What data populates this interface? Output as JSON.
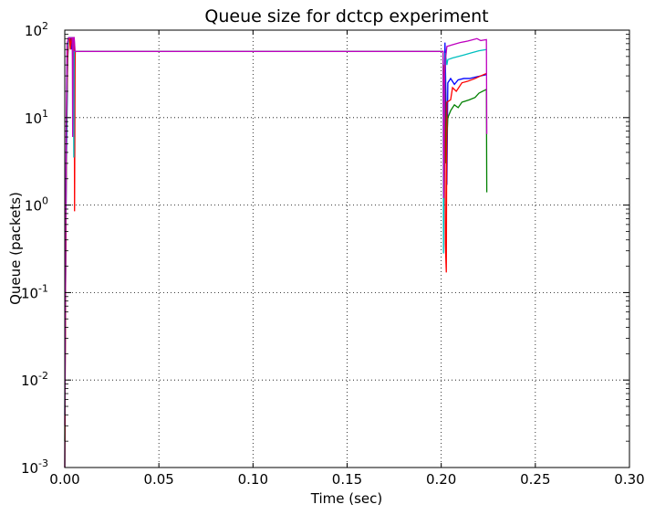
{
  "chart_data": {
    "type": "line",
    "title": "Queue size for dctcp experiment",
    "xlabel": "Time (sec)",
    "ylabel": "Queue (packets)",
    "xlim": [
      0.0,
      0.3
    ],
    "ylim": [
      0.001,
      100
    ],
    "yscale": "log",
    "grid": true,
    "x_ticks": [
      "0.00",
      "0.05",
      "0.10",
      "0.15",
      "0.20",
      "0.25",
      "0.30"
    ],
    "x_tick_values": [
      0.0,
      0.05,
      0.1,
      0.15,
      0.2,
      0.25,
      0.3
    ],
    "y_ticks": [
      {
        "value": 0.001,
        "base": "10",
        "exp": "-3"
      },
      {
        "value": 0.01,
        "base": "10",
        "exp": "-2"
      },
      {
        "value": 0.1,
        "base": "10",
        "exp": "-1"
      },
      {
        "value": 1,
        "base": "10",
        "exp": "0"
      },
      {
        "value": 10,
        "base": "10",
        "exp": "1"
      },
      {
        "value": 100,
        "base": "10",
        "exp": "2"
      }
    ],
    "series": [
      {
        "color": "#0000ff",
        "points": [
          [
            0.0,
            0.001
          ],
          [
            0.0003,
            0.05
          ],
          [
            0.0008,
            2
          ],
          [
            0.0015,
            40
          ],
          [
            0.002,
            82
          ],
          [
            0.003,
            82
          ],
          [
            0.0035,
            60
          ],
          [
            0.004,
            82
          ],
          [
            0.0045,
            82
          ],
          [
            0.005,
            82
          ],
          [
            0.0052,
            30
          ],
          [
            0.0055,
            57
          ],
          [
            0.201,
            57
          ],
          [
            0.2015,
            8
          ],
          [
            0.202,
            72
          ],
          [
            0.2025,
            18
          ],
          [
            0.203,
            1.7
          ],
          [
            0.2035,
            25
          ],
          [
            0.205,
            28
          ],
          [
            0.207,
            24
          ],
          [
            0.209,
            27
          ],
          [
            0.212,
            28
          ],
          [
            0.215,
            28
          ],
          [
            0.218,
            29
          ],
          [
            0.221,
            30
          ],
          [
            0.224,
            31
          ]
        ]
      },
      {
        "color": "#008000",
        "points": [
          [
            0.0,
            0.002
          ],
          [
            0.0003,
            0.05
          ],
          [
            0.0008,
            3
          ],
          [
            0.0015,
            50
          ],
          [
            0.002,
            82
          ],
          [
            0.003,
            82
          ],
          [
            0.004,
            82
          ],
          [
            0.0045,
            20
          ],
          [
            0.005,
            82
          ],
          [
            0.0053,
            40
          ],
          [
            0.0056,
            57
          ],
          [
            0.201,
            57
          ],
          [
            0.2013,
            6
          ],
          [
            0.2018,
            40
          ],
          [
            0.2025,
            3
          ],
          [
            0.203,
            6
          ],
          [
            0.2035,
            10
          ],
          [
            0.205,
            12
          ],
          [
            0.207,
            14
          ],
          [
            0.209,
            13
          ],
          [
            0.211,
            15
          ],
          [
            0.215,
            16
          ],
          [
            0.218,
            17
          ],
          [
            0.22,
            19
          ],
          [
            0.222,
            20
          ],
          [
            0.224,
            21
          ],
          [
            0.2242,
            1.4
          ]
        ]
      },
      {
        "color": "#ff0000",
        "points": [
          [
            0.0,
            0.001
          ],
          [
            0.0004,
            0.1
          ],
          [
            0.0009,
            8
          ],
          [
            0.0015,
            45
          ],
          [
            0.002,
            82
          ],
          [
            0.0025,
            82
          ],
          [
            0.003,
            60
          ],
          [
            0.0035,
            82
          ],
          [
            0.0045,
            82
          ],
          [
            0.005,
            82
          ],
          [
            0.0052,
            0.85
          ],
          [
            0.0055,
            57
          ],
          [
            0.201,
            57
          ],
          [
            0.2015,
            2.2
          ],
          [
            0.2018,
            40
          ],
          [
            0.2022,
            0.35
          ],
          [
            0.2027,
            0.17
          ],
          [
            0.203,
            15
          ],
          [
            0.205,
            16
          ],
          [
            0.206,
            22
          ],
          [
            0.208,
            20
          ],
          [
            0.211,
            25
          ],
          [
            0.214,
            26
          ],
          [
            0.218,
            28
          ],
          [
            0.221,
            30
          ],
          [
            0.224,
            32
          ]
        ]
      },
      {
        "color": "#00bfbf",
        "points": [
          [
            0.0,
            0.004
          ],
          [
            0.0003,
            0.2
          ],
          [
            0.0008,
            5
          ],
          [
            0.0013,
            60
          ],
          [
            0.002,
            82
          ],
          [
            0.003,
            82
          ],
          [
            0.0035,
            82
          ],
          [
            0.0045,
            82
          ],
          [
            0.0048,
            3.5
          ],
          [
            0.005,
            57
          ],
          [
            0.201,
            57
          ],
          [
            0.2012,
            0.28
          ],
          [
            0.2017,
            15
          ],
          [
            0.2022,
            55
          ],
          [
            0.203,
            40
          ],
          [
            0.2035,
            46
          ],
          [
            0.206,
            48
          ],
          [
            0.209,
            50
          ],
          [
            0.212,
            52
          ],
          [
            0.216,
            55
          ],
          [
            0.22,
            58
          ],
          [
            0.224,
            60
          ]
        ]
      },
      {
        "color": "#bf00bf",
        "points": [
          [
            0.0,
            0.003
          ],
          [
            0.0004,
            0.3
          ],
          [
            0.0008,
            10
          ],
          [
            0.0012,
            70
          ],
          [
            0.002,
            82
          ],
          [
            0.003,
            82
          ],
          [
            0.004,
            82
          ],
          [
            0.0042,
            6
          ],
          [
            0.0045,
            82
          ],
          [
            0.005,
            82
          ],
          [
            0.0055,
            57
          ],
          [
            0.201,
            57
          ],
          [
            0.2013,
            1.2
          ],
          [
            0.2018,
            30
          ],
          [
            0.2022,
            45
          ],
          [
            0.203,
            65
          ],
          [
            0.206,
            68
          ],
          [
            0.21,
            72
          ],
          [
            0.214,
            75
          ],
          [
            0.217,
            78
          ],
          [
            0.219,
            80
          ],
          [
            0.221,
            76
          ],
          [
            0.224,
            78
          ],
          [
            0.2242,
            6.5
          ]
        ]
      }
    ]
  }
}
